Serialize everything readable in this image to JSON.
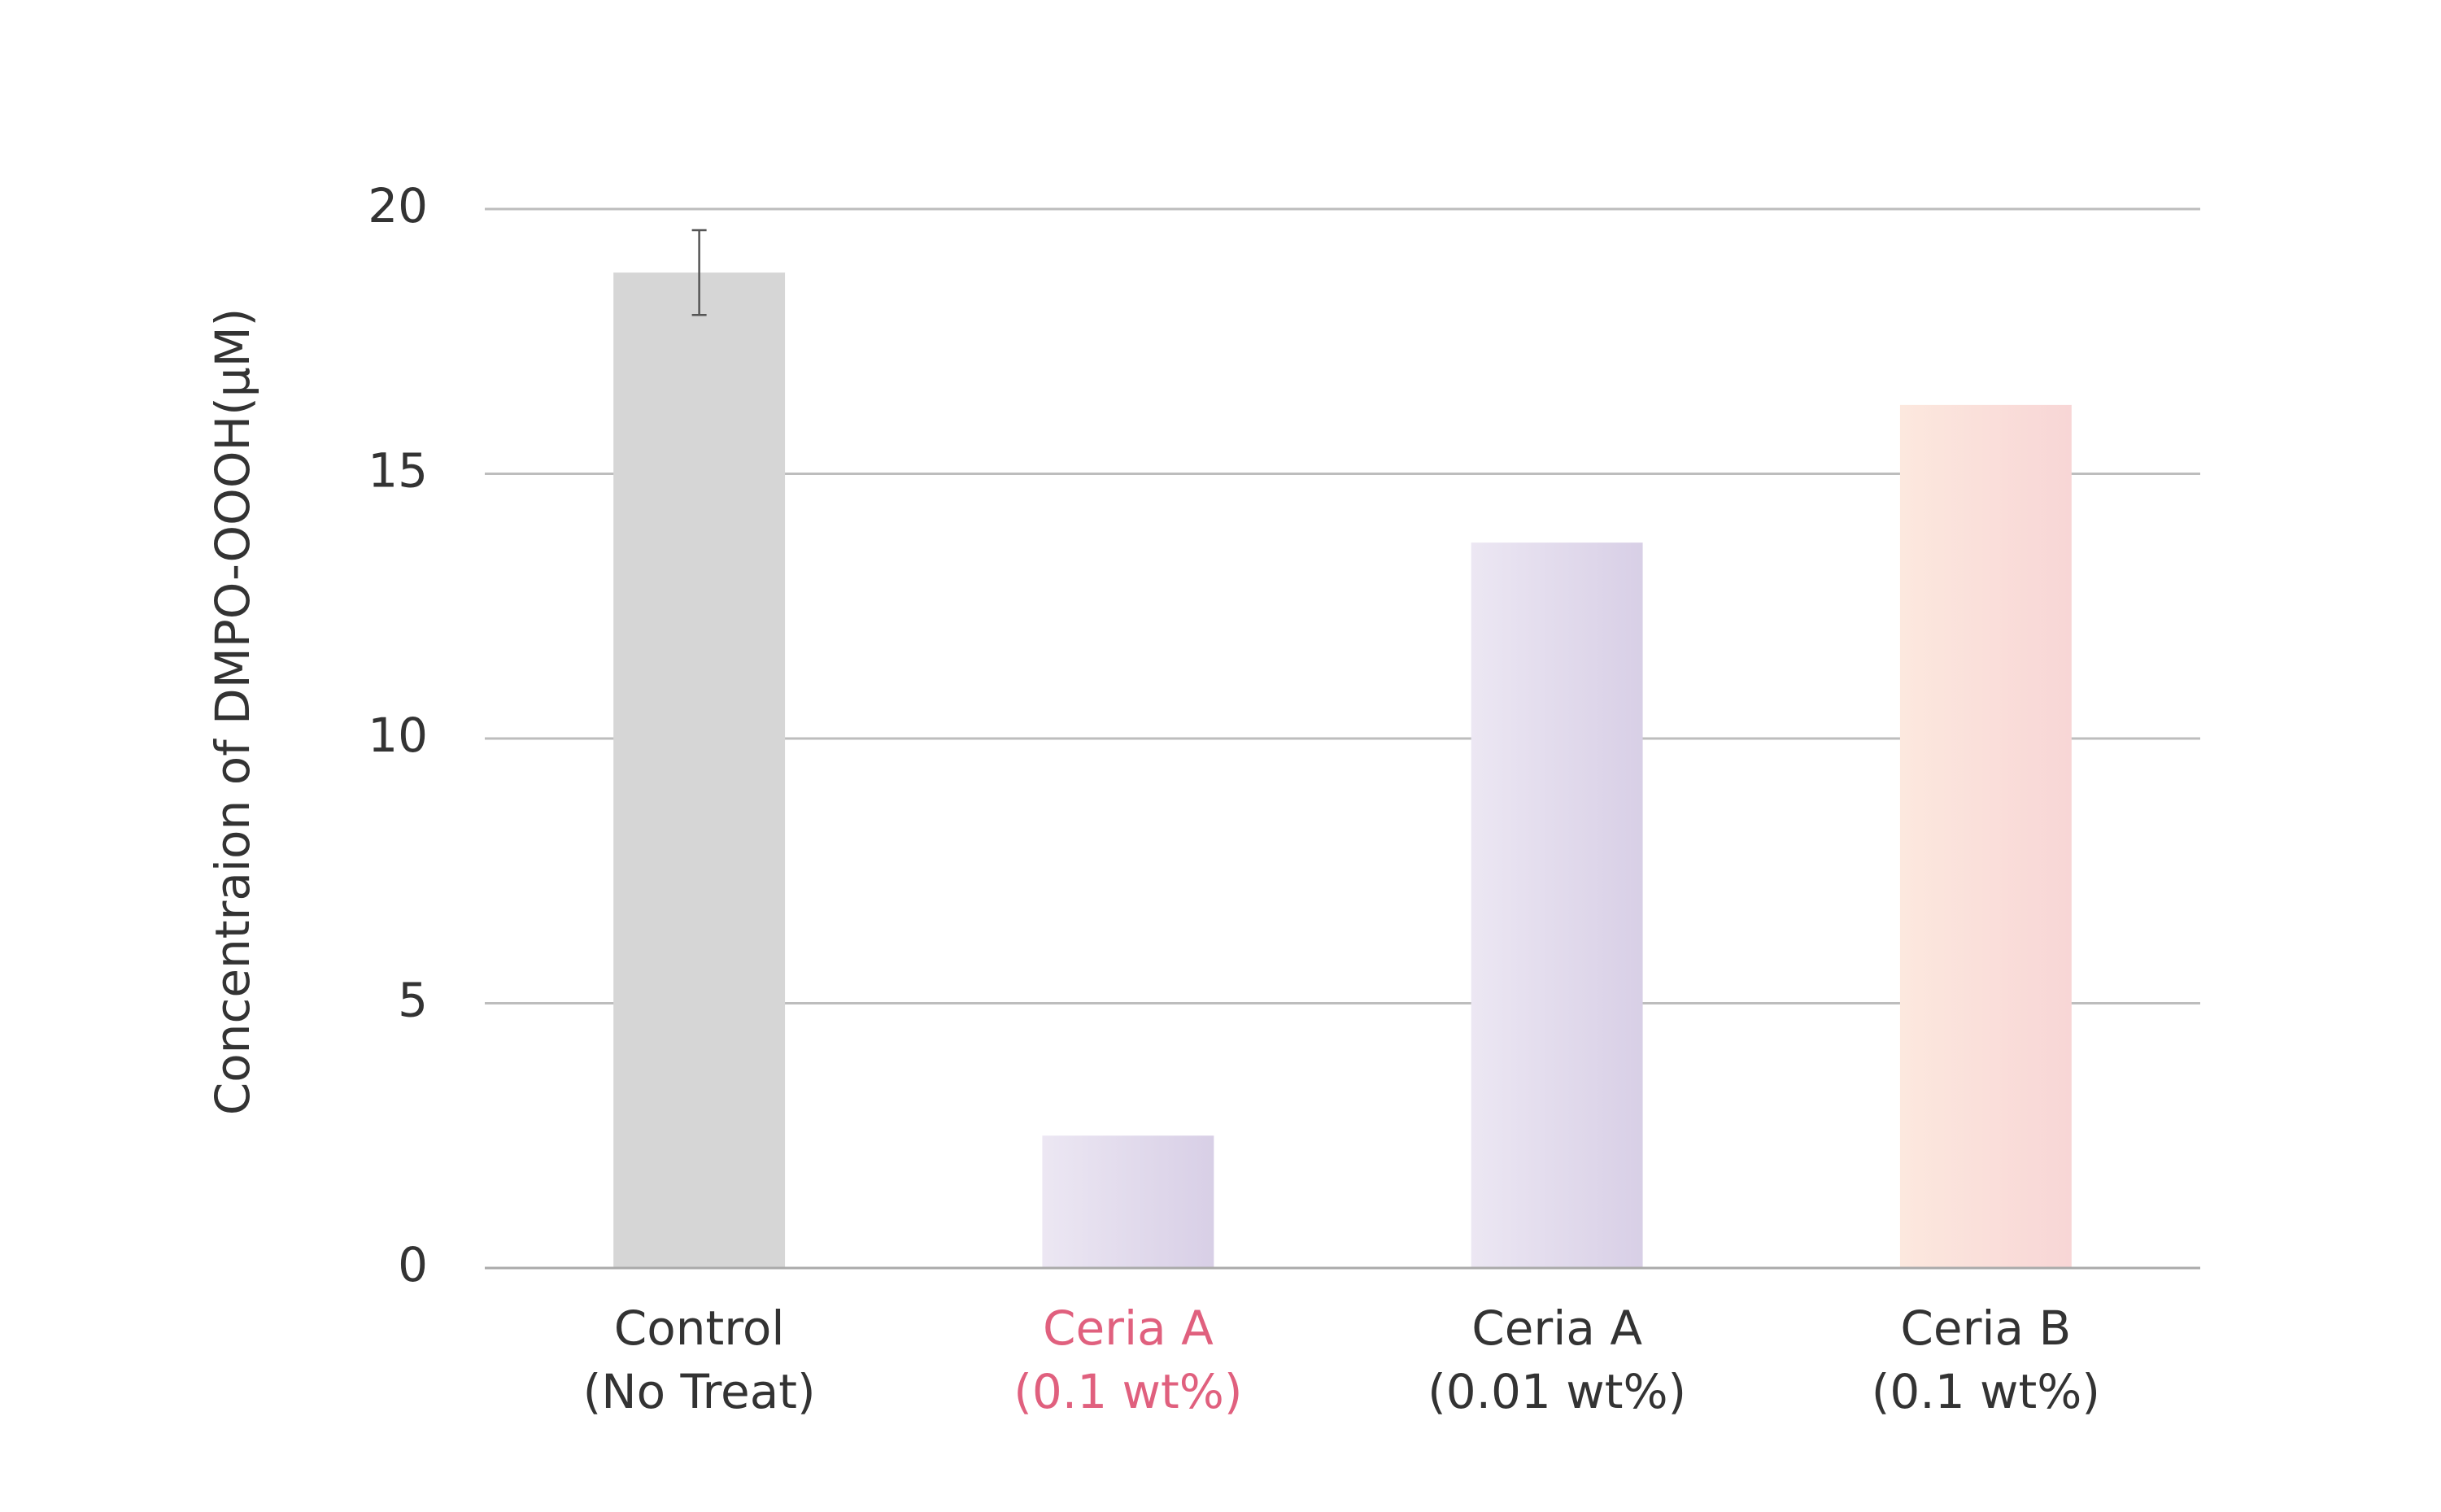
{
  "chart_data": {
    "type": "bar",
    "y_label": "Concentraion of DMPO-OOOH(μM)",
    "categories": [
      [
        "Control",
        "(No Treat)"
      ],
      [
        "Ceria A",
        "(0.1 wt%)"
      ],
      [
        "Ceria A",
        "(0.01 wt%)"
      ],
      [
        "Ceria B",
        "(0.1 wt%)"
      ]
    ],
    "category_label_colors": [
      "#333333",
      "#e0607e",
      "#333333",
      "#333333"
    ],
    "values": [
      18.8,
      2.5,
      13.7,
      16.3
    ],
    "errors": [
      0.8,
      null,
      null,
      null
    ],
    "colors": [
      [
        "#d6d6d6",
        "#d6d6d6"
      ],
      [
        "#ece7f3",
        "#d8cfe6"
      ],
      [
        "#ece7f3",
        "#d8cfe6"
      ],
      [
        "#fce8de",
        "#f8d6d6"
      ]
    ],
    "ylim": [
      0,
      20
    ],
    "yticks": [
      0,
      5,
      10,
      15,
      20
    ],
    "grid": true
  }
}
